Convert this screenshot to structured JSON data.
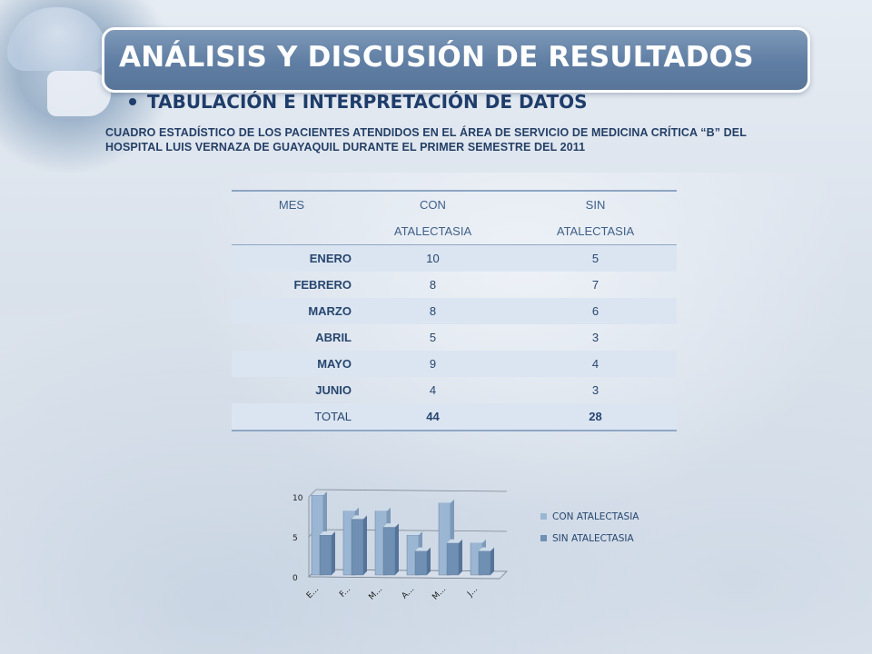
{
  "slide": {
    "title": "ANÁLISIS Y DISCUSIÓN DE RESULTADOS",
    "bullet": "TABULACIÓN E INTERPRETACIÓN DE DATOS",
    "caption": "CUADRO ESTADÍSTICO DE LOS PACIENTES ATENDIDOS EN EL ÁREA DE SERVICIO DE MEDICINA CRÍTICA “B” DEL HOSPITAL LUIS VERNAZA DE GUAYAQUIL DURANTE EL PRIMER SEMESTRE DEL 2011"
  },
  "table": {
    "headers": {
      "col1": "MES",
      "col2_line1": "CON",
      "col2_line2": "ATALECTASIA",
      "col3_line1": "SIN",
      "col3_line2": "ATALECTASIA"
    },
    "rows": [
      {
        "mes": "ENERO",
        "con": "10",
        "sin": "5"
      },
      {
        "mes": "FEBRERO",
        "con": "8",
        "sin": "7"
      },
      {
        "mes": "MARZO",
        "con": "8",
        "sin": "6"
      },
      {
        "mes": "ABRIL",
        "con": "5",
        "sin": "3"
      },
      {
        "mes": "MAYO",
        "con": "9",
        "sin": "4"
      },
      {
        "mes": "JUNIO",
        "con": "4",
        "sin": "3"
      }
    ],
    "total": {
      "label": "TOTAL",
      "con": "44",
      "sin": "28"
    }
  },
  "chart_data": {
    "type": "bar",
    "categories": [
      "E...",
      "F...",
      "M...",
      "A...",
      "M...",
      "J..."
    ],
    "series": [
      {
        "name": "CON ATALECTASIA",
        "values": [
          10,
          8,
          8,
          5,
          9,
          4
        ]
      },
      {
        "name": "SIN ATALECTASIA",
        "values": [
          5,
          7,
          6,
          3,
          4,
          3
        ]
      }
    ],
    "yticks": [
      "0",
      "5",
      "10"
    ],
    "ylim": [
      0,
      10
    ],
    "grid": true,
    "legend_position": "right",
    "colors": {
      "con": "#9bb6d3",
      "sin": "#6f8fb3"
    }
  }
}
